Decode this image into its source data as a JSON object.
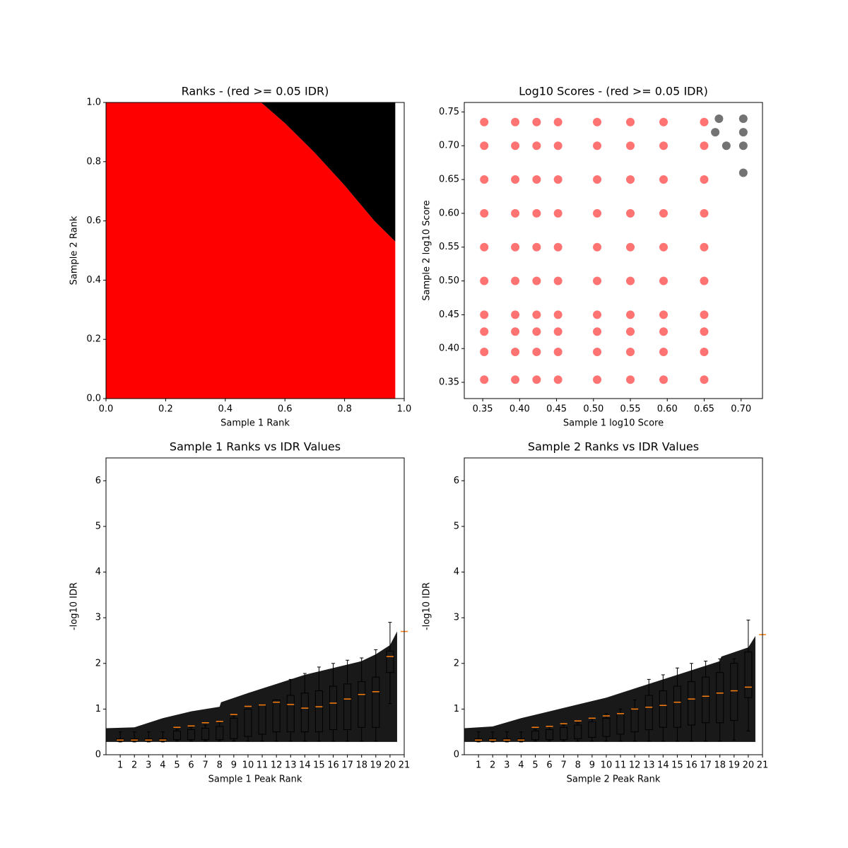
{
  "chart_data": [
    {
      "type": "area",
      "title": "Ranks - (red >= 0.05 IDR)",
      "x_label": "Sample 1 Rank",
      "y_label": "Sample 2 Rank",
      "x": [
        0,
        0.52,
        0.6,
        0.7,
        0.8,
        0.9,
        0.97
      ],
      "values": [
        1,
        1,
        0.93,
        0.83,
        0.72,
        0.6,
        0.53
      ],
      "color": "#ff0000",
      "above_color": "#000000",
      "xlim": [
        0,
        1
      ],
      "ylim": [
        0,
        1
      ],
      "xticks": [
        {
          "value": 0,
          "label": "0.0"
        },
        {
          "value": 0.2,
          "label": "0.2"
        },
        {
          "value": 0.4,
          "label": "0.4"
        },
        {
          "value": 0.6,
          "label": "0.6"
        },
        {
          "value": 0.8,
          "label": "0.8"
        },
        {
          "value": 1,
          "label": "1.0"
        }
      ],
      "yticks": [
        {
          "value": 0,
          "label": "0.0"
        },
        {
          "value": 0.2,
          "label": "0.2"
        },
        {
          "value": 0.4,
          "label": "0.4"
        },
        {
          "value": 0.6,
          "label": "0.6"
        },
        {
          "value": 0.8,
          "label": "0.8"
        },
        {
          "value": 1,
          "label": "1.0"
        }
      ]
    },
    {
      "type": "scatter",
      "title": "Log10 Scores - (red >= 0.05 IDR)",
      "x_label": "Sample 1 log10 Score",
      "y_label": "Sample 2 log10 Score",
      "series": [
        {
          "color": "#ff0000",
          "x": [
            0.352,
            0.394,
            0.423,
            0.452,
            0.505,
            0.55,
            0.595,
            0.65,
            0.352,
            0.394,
            0.423,
            0.452,
            0.505,
            0.55,
            0.595,
            0.65,
            0.352,
            0.394,
            0.423,
            0.452,
            0.505,
            0.55,
            0.595,
            0.65,
            0.352,
            0.394,
            0.423,
            0.452,
            0.505,
            0.55,
            0.595,
            0.65,
            0.352,
            0.394,
            0.423,
            0.452,
            0.505,
            0.55,
            0.595,
            0.65,
            0.352,
            0.394,
            0.423,
            0.452,
            0.505,
            0.55,
            0.595,
            0.65,
            0.352,
            0.394,
            0.423,
            0.452,
            0.505,
            0.55,
            0.595,
            0.65,
            0.352,
            0.394,
            0.423,
            0.452,
            0.505,
            0.55,
            0.595,
            0.65,
            0.352,
            0.394,
            0.423,
            0.452,
            0.505,
            0.55,
            0.595,
            0.65,
            0.352,
            0.394,
            0.423,
            0.452,
            0.505,
            0.55,
            0.595,
            0.65
          ],
          "values": [
            0.354,
            0.354,
            0.354,
            0.354,
            0.354,
            0.354,
            0.354,
            0.354,
            0.395,
            0.395,
            0.395,
            0.395,
            0.395,
            0.395,
            0.395,
            0.395,
            0.425,
            0.425,
            0.425,
            0.425,
            0.425,
            0.425,
            0.425,
            0.425,
            0.45,
            0.45,
            0.45,
            0.45,
            0.45,
            0.45,
            0.45,
            0.45,
            0.5,
            0.5,
            0.5,
            0.5,
            0.5,
            0.5,
            0.5,
            0.5,
            0.55,
            0.55,
            0.55,
            0.55,
            0.55,
            0.55,
            0.55,
            0.55,
            0.6,
            0.6,
            0.6,
            0.6,
            0.6,
            0.6,
            0.6,
            0.6,
            0.65,
            0.65,
            0.65,
            0.65,
            0.65,
            0.65,
            0.65,
            0.65,
            0.7,
            0.7,
            0.7,
            0.7,
            0.7,
            0.7,
            0.7,
            0.7,
            0.735,
            0.735,
            0.735,
            0.735,
            0.735,
            0.735,
            0.735,
            0.735
          ]
        },
        {
          "color": "#000000",
          "x": [
            0.703,
            0.703,
            0.703,
            0.703,
            0.67,
            0.665,
            0.68
          ],
          "values": [
            0.74,
            0.72,
            0.7,
            0.66,
            0.74,
            0.72,
            0.7
          ]
        }
      ],
      "xlim": [
        0.325,
        0.729
      ],
      "ylim": [
        0.326,
        0.764
      ],
      "xticks": [
        0.35,
        {
          "value": 0.4,
          "label": "0.40"
        },
        0.45,
        {
          "value": 0.5,
          "label": "0.50"
        },
        0.55,
        {
          "value": 0.6,
          "label": "0.60"
        },
        0.65,
        {
          "value": 0.7,
          "label": "0.70"
        }
      ],
      "yticks": [
        0.35,
        {
          "value": 0.4,
          "label": "0.40"
        },
        0.45,
        {
          "value": 0.5,
          "label": "0.50"
        },
        0.55,
        {
          "value": 0.6,
          "label": "0.60"
        },
        0.65,
        {
          "value": 0.7,
          "label": "0.70"
        },
        0.75
      ]
    },
    {
      "type": "box",
      "title": "Sample 1 Ranks vs IDR Values",
      "x_label": "Sample 1 Peak Rank",
      "y_label": "-log10 IDR",
      "cloud_x": [
        0,
        2,
        4,
        6,
        8,
        8.1,
        10,
        12,
        14,
        16,
        18,
        19,
        20,
        20.5
      ],
      "cloud_upper": [
        0.58,
        0.6,
        0.8,
        0.95,
        1.05,
        1.15,
        1.35,
        1.55,
        1.75,
        1.9,
        2.05,
        2.2,
        2.4,
        2.7
      ],
      "cloud_lower": [
        0.28,
        0.28,
        0.28,
        0.28,
        0.28,
        0.28,
        0.28,
        0.28,
        0.28,
        0.28,
        0.28,
        0.28,
        0.28,
        0.28
      ],
      "medians": [
        0.32,
        0.32,
        0.32,
        0.32,
        0.6,
        0.63,
        0.7,
        0.73,
        0.88,
        1.06,
        1.09,
        1.15,
        1.1,
        1.02,
        1.05,
        1.13,
        1.22,
        1.32,
        1.38,
        2.15,
        2.7
      ],
      "q1": [
        0.3,
        0.3,
        0.3,
        0.3,
        0.33,
        0.33,
        0.33,
        0.33,
        0.35,
        0.4,
        0.45,
        0.5,
        0.5,
        0.5,
        0.5,
        0.55,
        0.55,
        0.6,
        0.6,
        1.8,
        2.7
      ],
      "q3": [
        0.35,
        0.35,
        0.35,
        0.35,
        0.52,
        0.55,
        0.58,
        0.62,
        0.8,
        1.0,
        1.1,
        1.2,
        1.3,
        1.35,
        1.4,
        1.5,
        1.55,
        1.6,
        1.7,
        2.27,
        2.7
      ],
      "whisker_low": [
        0.28,
        0.28,
        0.28,
        0.28,
        0.3,
        0.3,
        0.3,
        0.3,
        0.3,
        0.3,
        0.3,
        0.3,
        0.3,
        0.3,
        0.3,
        0.3,
        0.3,
        0.3,
        0.3,
        1.12,
        2.7
      ],
      "whisker_high": [
        0.5,
        0.5,
        0.5,
        0.5,
        0.55,
        0.6,
        0.65,
        0.7,
        0.85,
        1.0,
        1.1,
        1.2,
        1.65,
        1.78,
        1.92,
        2.0,
        2.07,
        2.12,
        2.3,
        2.9,
        2.7
      ],
      "color": "#000000",
      "median_color": "#ff7f0e",
      "xlim": [
        0,
        21
      ],
      "ylim": [
        0,
        6.5
      ],
      "xticks": [
        1,
        2,
        3,
        4,
        5,
        6,
        7,
        8,
        9,
        10,
        11,
        12,
        13,
        14,
        15,
        16,
        17,
        18,
        19,
        20,
        21
      ],
      "yticks": [
        0,
        1,
        2,
        3,
        4,
        5,
        6
      ]
    },
    {
      "type": "box",
      "title": "Sample 2 Ranks vs IDR Values",
      "x_label": "Sample 2 Peak Rank",
      "y_label": "-log10 IDR",
      "cloud_x": [
        0,
        2,
        4,
        6,
        8,
        10,
        12,
        14,
        16,
        18,
        18.1,
        20,
        20.5
      ],
      "cloud_upper": [
        0.58,
        0.62,
        0.8,
        0.95,
        1.1,
        1.25,
        1.45,
        1.65,
        1.85,
        2.05,
        2.15,
        2.35,
        2.6
      ],
      "cloud_lower": [
        0.28,
        0.28,
        0.28,
        0.28,
        0.28,
        0.28,
        0.28,
        0.28,
        0.28,
        0.28,
        0.28,
        0.28,
        0.28
      ],
      "medians": [
        0.32,
        0.32,
        0.32,
        0.32,
        0.6,
        0.62,
        0.68,
        0.74,
        0.8,
        0.85,
        0.9,
        1.0,
        1.04,
        1.08,
        1.15,
        1.22,
        1.28,
        1.35,
        1.4,
        1.48,
        2.63
      ],
      "q1": [
        0.3,
        0.3,
        0.3,
        0.3,
        0.33,
        0.33,
        0.33,
        0.35,
        0.38,
        0.4,
        0.45,
        0.5,
        0.55,
        0.6,
        0.6,
        0.65,
        0.7,
        0.7,
        0.75,
        1.25,
        2.63
      ],
      "q3": [
        0.35,
        0.35,
        0.35,
        0.35,
        0.52,
        0.55,
        0.6,
        0.65,
        0.72,
        0.8,
        0.9,
        1.0,
        1.3,
        1.4,
        1.5,
        1.6,
        1.7,
        1.8,
        2.0,
        2.25,
        2.63
      ],
      "whisker_low": [
        0.28,
        0.28,
        0.28,
        0.28,
        0.3,
        0.3,
        0.3,
        0.3,
        0.3,
        0.3,
        0.3,
        0.3,
        0.3,
        0.3,
        0.3,
        0.3,
        0.3,
        0.3,
        0.32,
        0.52,
        2.63
      ],
      "whisker_high": [
        0.5,
        0.5,
        0.5,
        0.5,
        0.55,
        0.6,
        0.65,
        0.7,
        0.8,
        0.9,
        1.0,
        1.2,
        1.65,
        1.75,
        1.9,
        2.0,
        2.05,
        2.1,
        2.1,
        2.95,
        2.63
      ],
      "color": "#000000",
      "median_color": "#ff7f0e",
      "xlim": [
        0,
        21
      ],
      "ylim": [
        0,
        6.5
      ],
      "xticks": [
        1,
        2,
        3,
        4,
        5,
        6,
        7,
        8,
        9,
        10,
        11,
        12,
        13,
        14,
        15,
        16,
        17,
        18,
        19,
        20,
        21
      ],
      "yticks": [
        0,
        1,
        2,
        3,
        4,
        5,
        6
      ]
    }
  ]
}
